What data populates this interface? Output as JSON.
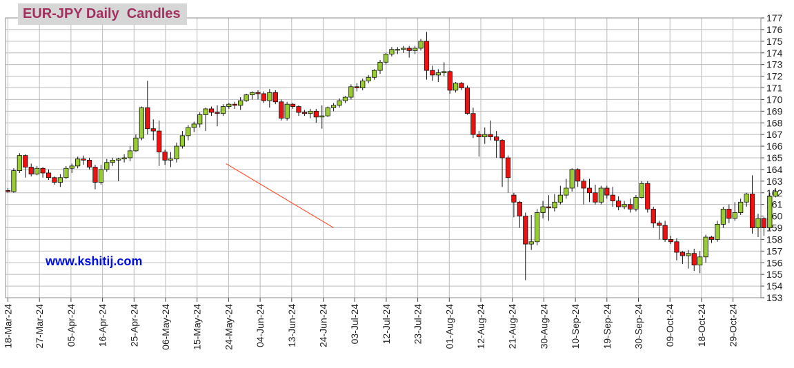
{
  "chart_data": {
    "type": "candlestick",
    "title": "EUR-JPY Daily  Candles",
    "watermark": "www.kshitij.com",
    "ylim": [
      153,
      177
    ],
    "y_ticks": [
      153,
      154,
      155,
      156,
      157,
      158,
      159,
      160,
      161,
      162,
      163,
      164,
      165,
      166,
      167,
      168,
      169,
      170,
      171,
      172,
      173,
      174,
      175,
      176,
      177
    ],
    "x_tick_labels": [
      "18-Mar-24",
      "27-Mar-24",
      "05-Apr-24",
      "16-Apr-24",
      "25-Apr-24",
      "06-May-24",
      "15-May-24",
      "24-May-24",
      "04-Jun-24",
      "13-Jun-24",
      "24-Jun-24",
      "03-Jul-24",
      "12-Jul-24",
      "23-Jul-24",
      "01-Aug-24",
      "12-Aug-24",
      "21-Aug-24",
      "30-Aug-24",
      "10-Sep-24",
      "19-Sep-24",
      "30-Sep-24",
      "09-Oct-24",
      "18-Oct-24",
      "29-Oct-24"
    ],
    "colors": {
      "up": "#99cc33",
      "down": "#ee1111",
      "trendline": "#ff5533",
      "grid": "#bbbbbb",
      "title": "#a0305f",
      "watermark": "#0010e0"
    },
    "trendline": {
      "start": [
        37.5,
        164.5
      ],
      "end": [
        56.0,
        159.0
      ]
    },
    "candles": [
      [
        162.2,
        162.4,
        162.0,
        162.1
      ],
      [
        162.1,
        164.1,
        162.0,
        163.9
      ],
      [
        163.9,
        165.4,
        163.7,
        165.2
      ],
      [
        165.2,
        165.3,
        163.3,
        164.2
      ],
      [
        164.2,
        164.5,
        163.4,
        163.6
      ],
      [
        163.6,
        164.3,
        163.5,
        164.1
      ],
      [
        164.1,
        164.2,
        163.3,
        163.7
      ],
      [
        163.7,
        164.0,
        163.1,
        163.3
      ],
      [
        163.3,
        163.4,
        162.7,
        162.9
      ],
      [
        162.9,
        163.6,
        162.5,
        163.3
      ],
      [
        163.3,
        164.3,
        163.2,
        164.1
      ],
      [
        164.1,
        164.5,
        163.7,
        164.3
      ],
      [
        164.3,
        165.1,
        164.1,
        164.9
      ],
      [
        164.9,
        165.2,
        164.4,
        164.8
      ],
      [
        164.8,
        165.0,
        164.0,
        164.2
      ],
      [
        164.2,
        164.4,
        162.3,
        162.9
      ],
      [
        162.9,
        164.4,
        162.7,
        164.0
      ],
      [
        164.0,
        164.9,
        163.8,
        164.6
      ],
      [
        164.6,
        165.0,
        164.3,
        164.8
      ],
      [
        164.8,
        165.0,
        163.0,
        164.9
      ],
      [
        164.9,
        165.3,
        164.6,
        165.0
      ],
      [
        165.0,
        166.0,
        164.7,
        165.6
      ],
      [
        165.6,
        167.0,
        165.5,
        166.7
      ],
      [
        166.7,
        169.4,
        166.5,
        169.3
      ],
      [
        169.3,
        171.6,
        167.0,
        167.5
      ],
      [
        167.5,
        168.3,
        166.5,
        167.3
      ],
      [
        167.3,
        168.2,
        164.3,
        165.5
      ],
      [
        165.5,
        165.7,
        164.4,
        164.8
      ],
      [
        164.8,
        165.5,
        164.2,
        164.9
      ],
      [
        164.9,
        166.3,
        164.6,
        166.0
      ],
      [
        166.0,
        167.3,
        165.8,
        166.9
      ],
      [
        166.9,
        167.8,
        166.5,
        167.6
      ],
      [
        167.6,
        168.1,
        167.2,
        167.9
      ],
      [
        167.9,
        168.9,
        167.6,
        168.7
      ],
      [
        168.7,
        169.3,
        167.3,
        169.2
      ],
      [
        169.2,
        169.4,
        168.6,
        168.9
      ],
      [
        168.9,
        169.5,
        167.7,
        168.8
      ],
      [
        168.8,
        169.6,
        168.6,
        169.4
      ],
      [
        169.4,
        169.7,
        169.2,
        169.6
      ],
      [
        169.6,
        169.8,
        169.2,
        169.5
      ],
      [
        169.5,
        170.2,
        169.1,
        169.9
      ],
      [
        169.9,
        170.5,
        169.8,
        170.4
      ],
      [
        170.4,
        170.7,
        170.0,
        170.6
      ],
      [
        170.6,
        170.8,
        170.0,
        170.5
      ],
      [
        170.5,
        170.7,
        169.7,
        169.9
      ],
      [
        169.9,
        170.9,
        169.3,
        170.6
      ],
      [
        170.6,
        170.8,
        169.6,
        169.8
      ],
      [
        169.8,
        170.0,
        168.2,
        168.4
      ],
      [
        168.4,
        169.8,
        168.2,
        169.6
      ],
      [
        169.6,
        169.7,
        169.2,
        169.4
      ],
      [
        169.4,
        169.5,
        168.6,
        168.9
      ],
      [
        168.9,
        169.1,
        168.6,
        168.8
      ],
      [
        168.8,
        169.2,
        168.4,
        169.0
      ],
      [
        169.0,
        169.2,
        168.0,
        168.5
      ],
      [
        168.5,
        169.5,
        167.5,
        168.6
      ],
      [
        168.6,
        169.4,
        168.5,
        169.3
      ],
      [
        169.3,
        169.7,
        169.0,
        169.5
      ],
      [
        169.5,
        170.1,
        169.3,
        169.9
      ],
      [
        169.9,
        170.3,
        169.7,
        170.2
      ],
      [
        170.2,
        171.3,
        170.0,
        171.1
      ],
      [
        171.1,
        171.4,
        170.7,
        171.0
      ],
      [
        171.0,
        171.8,
        170.8,
        171.6
      ],
      [
        171.6,
        172.1,
        171.4,
        171.9
      ],
      [
        171.9,
        172.6,
        171.7,
        172.5
      ],
      [
        172.5,
        173.4,
        172.2,
        173.2
      ],
      [
        173.2,
        174.0,
        173.0,
        173.9
      ],
      [
        173.9,
        174.5,
        173.7,
        174.3
      ],
      [
        174.3,
        174.5,
        173.9,
        174.3
      ],
      [
        174.3,
        174.6,
        174.0,
        174.4
      ],
      [
        174.4,
        174.6,
        173.6,
        174.2
      ],
      [
        174.2,
        174.6,
        173.9,
        174.4
      ],
      [
        174.4,
        175.2,
        174.2,
        175.0
      ],
      [
        175.0,
        175.8,
        171.7,
        172.5
      ],
      [
        172.5,
        172.9,
        171.6,
        172.1
      ],
      [
        172.1,
        172.6,
        171.5,
        172.3
      ],
      [
        172.3,
        173.2,
        172.0,
        172.4
      ],
      [
        172.4,
        172.5,
        170.5,
        170.8
      ],
      [
        170.8,
        171.5,
        170.6,
        171.4
      ],
      [
        171.4,
        171.5,
        170.8,
        171.0
      ],
      [
        171.0,
        171.2,
        168.7,
        168.8
      ],
      [
        168.8,
        169.3,
        166.7,
        167.0
      ],
      [
        167.0,
        167.3,
        165.1,
        166.8
      ],
      [
        166.8,
        167.6,
        166.2,
        167.0
      ],
      [
        167.0,
        168.2,
        166.5,
        166.8
      ],
      [
        166.8,
        167.3,
        165.0,
        166.5
      ],
      [
        166.5,
        166.6,
        162.5,
        165.0
      ],
      [
        165.0,
        165.2,
        162.0,
        163.3
      ],
      [
        161.8,
        162.0,
        159.9,
        161.2
      ],
      [
        161.2,
        161.3,
        159.0,
        160.0
      ],
      [
        160.0,
        160.3,
        154.5,
        157.6
      ],
      [
        157.6,
        160.1,
        157.1,
        157.8
      ],
      [
        157.8,
        160.6,
        157.5,
        160.3
      ],
      [
        160.3,
        161.3,
        159.8,
        160.8
      ],
      [
        160.8,
        161.8,
        159.6,
        160.7
      ],
      [
        160.7,
        161.9,
        160.4,
        161.2
      ],
      [
        161.2,
        162.6,
        161.0,
        161.8
      ],
      [
        161.8,
        163.2,
        161.5,
        162.4
      ],
      [
        162.4,
        164.1,
        162.1,
        164.0
      ],
      [
        164.0,
        164.1,
        162.5,
        163.0
      ],
      [
        163.0,
        163.2,
        161.0,
        162.4
      ],
      [
        162.4,
        163.2,
        161.2,
        162.0
      ],
      [
        162.0,
        162.7,
        161.0,
        161.2
      ],
      [
        161.2,
        162.6,
        161.0,
        162.4
      ],
      [
        162.4,
        162.6,
        161.5,
        161.8
      ],
      [
        161.8,
        162.5,
        160.8,
        161.3
      ],
      [
        161.3,
        161.7,
        160.5,
        160.8
      ],
      [
        160.8,
        161.3,
        160.6,
        161.0
      ],
      [
        161.0,
        161.5,
        160.3,
        160.6
      ],
      [
        160.6,
        161.8,
        160.4,
        161.6
      ],
      [
        161.6,
        163.0,
        161.5,
        162.8
      ],
      [
        162.8,
        163.0,
        160.3,
        160.6
      ],
      [
        160.6,
        160.8,
        159.0,
        159.4
      ],
      [
        159.4,
        159.6,
        158.0,
        159.2
      ],
      [
        159.2,
        159.6,
        157.8,
        158.0
      ],
      [
        158.0,
        158.3,
        157.6,
        157.8
      ],
      [
        157.8,
        158.1,
        156.2,
        156.9
      ],
      [
        156.9,
        157.0,
        155.9,
        156.6
      ],
      [
        156.6,
        157.1,
        155.5,
        156.8
      ],
      [
        156.8,
        157.2,
        155.3,
        155.8
      ],
      [
        155.8,
        157.0,
        155.1,
        156.5
      ],
      [
        156.5,
        158.4,
        156.0,
        158.2
      ],
      [
        158.2,
        158.3,
        157.7,
        158.0
      ],
      [
        158.0,
        159.6,
        157.8,
        159.3
      ],
      [
        159.3,
        160.8,
        159.0,
        160.6
      ],
      [
        160.6,
        161.0,
        159.4,
        159.8
      ],
      [
        159.8,
        161.2,
        159.6,
        160.3
      ],
      [
        160.3,
        161.5,
        160.1,
        161.2
      ],
      [
        161.2,
        162.0,
        160.8,
        161.9
      ],
      [
        161.9,
        163.5,
        158.5,
        159.0
      ],
      [
        159.0,
        160.2,
        158.2,
        159.8
      ],
      [
        159.8,
        159.9,
        158.3,
        159.0
      ],
      [
        159.0,
        162.0,
        158.8,
        161.7
      ],
      [
        161.7,
        162.4,
        161.6,
        162.1
      ]
    ]
  }
}
